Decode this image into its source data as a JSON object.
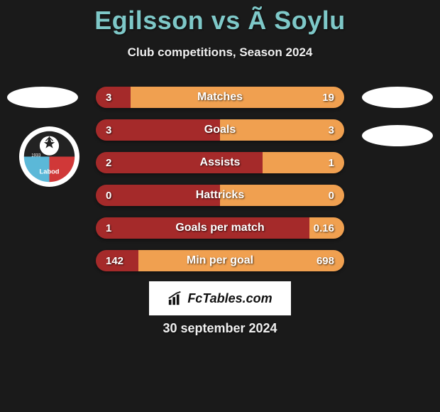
{
  "title": "Egilsson vs Ã Soylu",
  "subtitle": "Club competitions, Season 2024",
  "date": "30 september 2024",
  "fctables_label": "FcTables.com",
  "colors": {
    "left": "#a52a2a",
    "right": "#f0a050",
    "title": "#7ec8c8",
    "bg": "#1a1a1a",
    "text": "#f0f0f0"
  },
  "bars": [
    {
      "label": "Matches",
      "left": "3",
      "right": "19",
      "left_w": 14,
      "right_w": 86
    },
    {
      "label": "Goals",
      "left": "3",
      "right": "3",
      "left_w": 50,
      "right_w": 50
    },
    {
      "label": "Assists",
      "left": "2",
      "right": "1",
      "left_w": 67,
      "right_w": 33
    },
    {
      "label": "Hattricks",
      "left": "0",
      "right": "0",
      "left_w": 50,
      "right_w": 50
    },
    {
      "label": "Goals per match",
      "left": "1",
      "right": "0.16",
      "left_w": 86,
      "right_w": 14
    },
    {
      "label": "Min per goal",
      "left": "142",
      "right": "698",
      "left_w": 17,
      "right_w": 83
    }
  ]
}
